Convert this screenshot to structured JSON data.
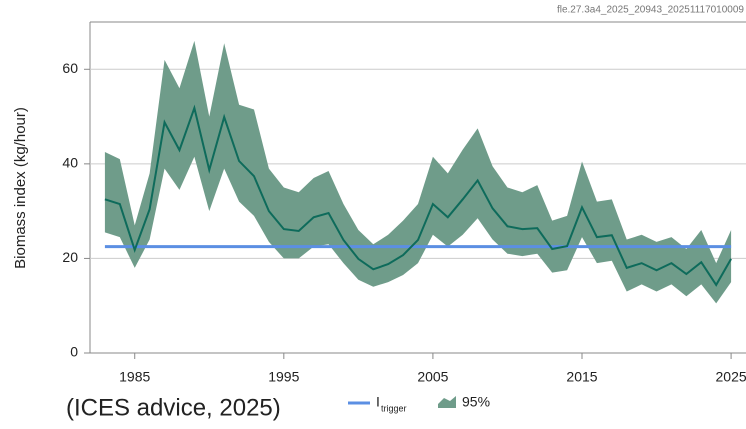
{
  "chart_data": {
    "type": "line",
    "source_id": "fle.27.3a4_2025_20943_20251117010009",
    "caption": "(ICES advice, 2025)",
    "y_label": "Biomass index (kg/hour)",
    "x": [
      1983,
      1984,
      1985,
      1986,
      1987,
      1988,
      1989,
      1990,
      1991,
      1992,
      1993,
      1994,
      1995,
      1996,
      1997,
      1998,
      1999,
      2000,
      2001,
      2002,
      2003,
      2004,
      2005,
      2006,
      2007,
      2008,
      2009,
      2010,
      2011,
      2012,
      2013,
      2014,
      2015,
      2016,
      2017,
      2018,
      2019,
      2020,
      2021,
      2022,
      2023,
      2024,
      2025
    ],
    "series": [
      {
        "color": "#0e6b5b",
        "values": [
          32.5,
          31.5,
          21.8,
          30.4,
          48.8,
          42.9,
          51.8,
          38.7,
          49.9,
          40.6,
          37.4,
          30,
          26.2,
          25.8,
          28.7,
          29.6,
          23.9,
          19.9,
          17.7,
          18.8,
          20.7,
          23.9,
          31.5,
          28.7,
          32.5,
          36.5,
          30.6,
          26.8,
          26.2,
          26.4,
          22,
          22.6,
          30.8,
          24.5,
          24.9,
          18,
          19,
          17.5,
          19,
          16.7,
          19.2,
          14.4,
          19.9
        ]
      }
    ],
    "band": {
      "name": "95%",
      "color": "#6f9c8a",
      "upper": [
        42.5,
        41,
        27,
        38,
        62,
        56,
        66,
        50,
        65.5,
        52.5,
        51.5,
        39,
        35,
        34,
        37,
        38.5,
        31.5,
        26,
        23,
        25,
        28,
        31.5,
        41.5,
        38,
        43,
        47.5,
        39.5,
        35,
        34,
        35.5,
        28,
        29,
        40.5,
        32,
        32.5,
        24,
        25,
        23.5,
        24.5,
        22,
        26,
        19,
        26
      ],
      "lower": [
        25.5,
        24.5,
        18,
        24,
        39,
        34.5,
        41.5,
        30,
        39,
        32,
        29,
        23.5,
        20,
        20,
        22.5,
        23,
        19,
        15.5,
        14,
        15,
        16.5,
        19,
        25,
        22.5,
        25,
        28.5,
        24,
        21,
        20.5,
        21,
        17,
        17.5,
        24.5,
        19,
        19.5,
        13,
        14.5,
        13,
        14.5,
        12,
        14.5,
        10.5,
        15
      ]
    },
    "hline": {
      "name": "I",
      "name_sub": "trigger",
      "value": 22.5,
      "color": "#5b8fe3"
    },
    "xlim": [
      1982,
      2026
    ],
    "xticks": [
      1985,
      1995,
      2005,
      2015,
      2025
    ],
    "ylim": [
      0,
      70
    ],
    "yticks": [
      0,
      20,
      40,
      60
    ],
    "grid": true
  }
}
